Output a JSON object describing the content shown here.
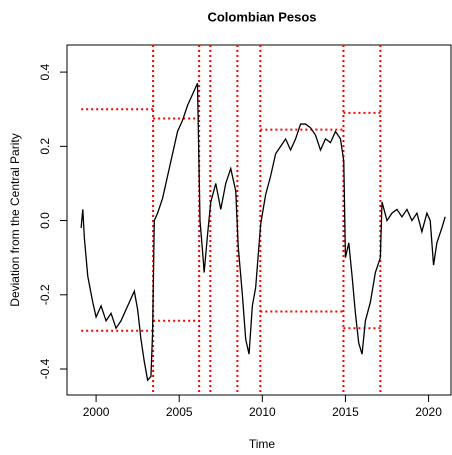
{
  "chart_data": {
    "type": "line",
    "title": "Colombian Pesos",
    "x_label": "Time",
    "y_label": "Deviation from the Central Parity",
    "xlim": [
      1998.25,
      2021.35
    ],
    "ylim": [
      -0.47,
      0.473
    ],
    "xticks": [
      2000,
      2005,
      2010,
      2015,
      2020
    ],
    "yticks": [
      -0.4,
      -0.2,
      {
        "value": 0,
        "label": "0.0"
      },
      0.2,
      0.4
    ],
    "series": [
      {
        "color": "#000000",
        "x": [
          1999.1,
          1999.2,
          1999.3,
          1999.5,
          1999.8,
          2000.0,
          2000.3,
          2000.6,
          2000.9,
          2001.2,
          2001.5,
          2001.8,
          2002.0,
          2002.3,
          2002.5,
          2002.7,
          2002.9,
          2003.1,
          2003.3,
          2003.4,
          2003.5,
          2003.7,
          2004.0,
          2004.3,
          2004.6,
          2004.9,
          2005.2,
          2005.5,
          2005.8,
          2006.1,
          2006.25,
          2006.4,
          2006.5,
          2006.7,
          2006.9,
          2007.2,
          2007.5,
          2007.8,
          2008.1,
          2008.4,
          2008.55,
          2008.8,
          2009.0,
          2009.2,
          2009.4,
          2009.6,
          2009.9,
          2010.2,
          2010.5,
          2010.8,
          2011.1,
          2011.4,
          2011.7,
          2012.0,
          2012.3,
          2012.6,
          2012.9,
          2013.2,
          2013.5,
          2013.8,
          2014.1,
          2014.4,
          2014.7,
          2014.9,
          2015.0,
          2015.2,
          2015.4,
          2015.6,
          2015.8,
          2016.0,
          2016.2,
          2016.5,
          2016.8,
          2017.1,
          2017.2,
          2017.5,
          2017.8,
          2018.1,
          2018.4,
          2018.7,
          2019.0,
          2019.3,
          2019.6,
          2019.9,
          2020.1,
          2020.3,
          2020.5,
          2020.8,
          2021.0
        ],
        "values": [
          -0.02,
          0.03,
          -0.05,
          -0.15,
          -0.22,
          -0.26,
          -0.23,
          -0.27,
          -0.25,
          -0.29,
          -0.27,
          -0.24,
          -0.22,
          -0.19,
          -0.24,
          -0.32,
          -0.38,
          -0.43,
          -0.42,
          -0.3,
          0.0,
          0.02,
          0.06,
          0.12,
          0.18,
          0.24,
          0.27,
          0.31,
          0.34,
          0.37,
          0.0,
          -0.08,
          -0.14,
          -0.04,
          0.05,
          0.1,
          0.03,
          0.1,
          0.14,
          0.08,
          -0.07,
          -0.2,
          -0.32,
          -0.36,
          -0.23,
          -0.18,
          -0.01,
          0.07,
          0.12,
          0.18,
          0.2,
          0.22,
          0.19,
          0.22,
          0.26,
          0.26,
          0.25,
          0.23,
          0.19,
          0.22,
          0.21,
          0.24,
          0.22,
          0.16,
          -0.1,
          -0.06,
          -0.15,
          -0.25,
          -0.33,
          -0.36,
          -0.27,
          -0.22,
          -0.14,
          -0.1,
          0.05,
          0.0,
          0.02,
          0.03,
          0.01,
          0.03,
          0.0,
          0.02,
          -0.03,
          0.02,
          0.0,
          -0.12,
          -0.06,
          -0.02,
          0.01
        ]
      }
    ],
    "reference_color": "#ff0000",
    "vertical_lines": [
      2003.43,
      2006.2,
      2006.87,
      2008.5,
      2009.88,
      2014.88,
      2017.1
    ],
    "horizontal_segments": [
      {
        "x": [
          1999.1,
          2003.43
        ],
        "y": 0.3
      },
      {
        "x": [
          1999.1,
          2003.43
        ],
        "y": -0.297
      },
      {
        "x": [
          2003.43,
          2006.2
        ],
        "y": 0.275
      },
      {
        "x": [
          2003.43,
          2006.2
        ],
        "y": -0.27
      },
      {
        "x": [
          2009.88,
          2014.88
        ],
        "y": 0.245
      },
      {
        "x": [
          2009.88,
          2014.88
        ],
        "y": -0.245
      },
      {
        "x": [
          2014.88,
          2017.1
        ],
        "y": 0.29
      },
      {
        "x": [
          2014.88,
          2017.1
        ],
        "y": -0.29
      }
    ]
  }
}
